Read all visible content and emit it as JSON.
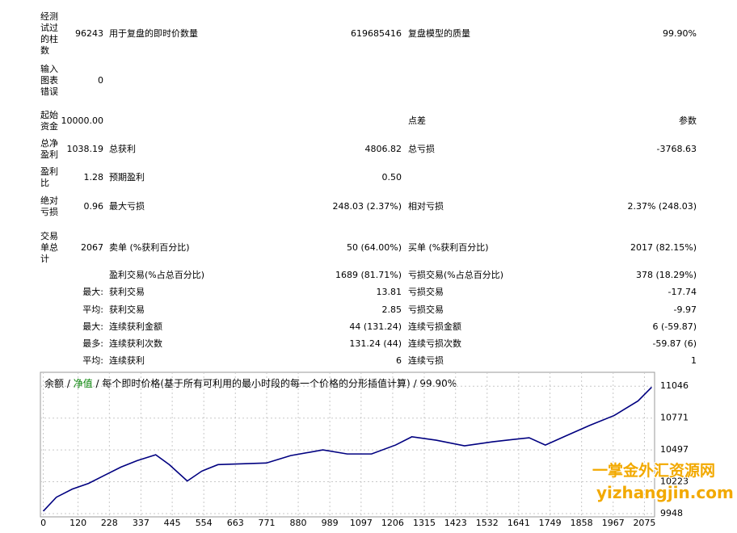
{
  "report": {
    "rows": [
      {
        "label": "经测试过的柱数",
        "value": "96243",
        "item1": "用于复盘的即时价数量",
        "value1": "619685416",
        "item2": "复盘模型的质量",
        "value2": "99.90%"
      },
      {
        "label": "输入图表错误",
        "value": "0"
      },
      {
        "label": "起始资金",
        "value": "10000.00",
        "item2": "点差",
        "value2": "参数"
      },
      {
        "label": "总净盈利",
        "value": "1038.19",
        "item1": "总获利",
        "value1": "4806.82",
        "item2": "总亏损",
        "value2": "-3768.63"
      },
      {
        "label": "盈利比",
        "value": "1.28",
        "item1": "预期盈利",
        "value1": "0.50"
      },
      {
        "label": "绝对亏损",
        "value": "0.96",
        "item1": "最大亏损",
        "value1": "248.03 (2.37%)",
        "item2": "相对亏损",
        "value2": "2.37% (248.03)"
      },
      {
        "label": "交易单总计",
        "value": "2067",
        "item1": "卖单 (%获利百分比)",
        "value1": "50 (64.00%)",
        "item2": "买单 (%获利百分比)",
        "value2": "2017 (82.15%)"
      },
      {
        "item1": "盈利交易(%占总百分比)",
        "value1": "1689 (81.71%)",
        "item2": "亏损交易(%占总百分比)",
        "value2": "378 (18.29%)"
      },
      {
        "group": "最大:",
        "item1": "获利交易",
        "value1": "13.81",
        "item2": "亏损交易",
        "value2": "-17.74"
      },
      {
        "group": "平均:",
        "item1": "获利交易",
        "value1": "2.85",
        "item2": "亏损交易",
        "value2": "-9.97"
      },
      {
        "group": "最大:",
        "item1": "连续获利金额",
        "value1": "44 (131.24)",
        "item2": "连续亏损金额",
        "value2": "6 (-59.87)"
      },
      {
        "group": "最多:",
        "item1": "连续获利次数",
        "value1": "131.24 (44)",
        "item2": "连续亏损次数",
        "value2": "-59.87 (6)"
      },
      {
        "group": "平均:",
        "item1": "连续获利",
        "value1": "6",
        "item2": "连续亏损",
        "value2": "1"
      }
    ]
  },
  "chart_data": {
    "type": "line",
    "legend": [
      "余额",
      "净值"
    ],
    "title": "每个即时价格(基于所有可利用的最小时段的每一个价格的分形插值计算)",
    "quality": "99.90%",
    "x": [
      0,
      45,
      100,
      156,
      212,
      268,
      324,
      388,
      435,
      497,
      547,
      603,
      686,
      770,
      854,
      965,
      1049,
      1133,
      1216,
      1272,
      1356,
      1454,
      1551,
      1677,
      1733,
      1803,
      1886,
      1970,
      2053,
      2100
    ],
    "values": [
      9969,
      10089,
      10159,
      10208,
      10279,
      10349,
      10405,
      10455,
      10370,
      10229,
      10314,
      10370,
      10377,
      10384,
      10448,
      10497,
      10462,
      10462,
      10539,
      10610,
      10581,
      10532,
      10567,
      10602,
      10539,
      10617,
      10708,
      10793,
      10919,
      11038
    ],
    "color": "#000080",
    "xlim": [
      -10,
      2110
    ],
    "ylim": [
      9920,
      11166
    ],
    "xticks": [
      0,
      120,
      228,
      337,
      445,
      554,
      663,
      771,
      880,
      989,
      1097,
      1206,
      1315,
      1423,
      1532,
      1641,
      1749,
      1858,
      1967,
      2075
    ],
    "yticks": [
      9948,
      10223,
      10497,
      10771,
      11046
    ],
    "grid": true
  },
  "watermark": {
    "name": "一掌金外汇资源网",
    "url": "yizhangjin.com"
  }
}
